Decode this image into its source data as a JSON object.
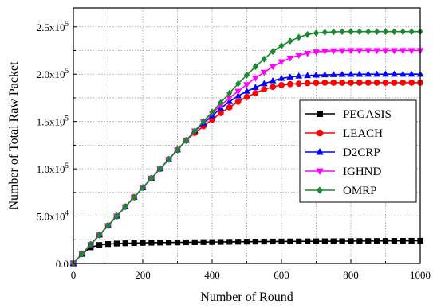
{
  "chart_data": {
    "type": "line",
    "title": "",
    "xlabel": "Number of Round",
    "ylabel": "Number of Total Raw Packet",
    "xlim": [
      0,
      1000
    ],
    "ylim": [
      0,
      270000
    ],
    "xticks": [
      0,
      200,
      400,
      600,
      800,
      1000
    ],
    "xtick_labels": [
      "0",
      "200",
      "400",
      "600",
      "800",
      "1000"
    ],
    "yticks": [
      0,
      50000,
      100000,
      150000,
      200000,
      250000
    ],
    "ytick_labels": [
      {
        "base": "0.0",
        "exp": ""
      },
      {
        "base": "5.0x10",
        "exp": "4"
      },
      {
        "base": "1.0x10",
        "exp": "5"
      },
      {
        "base": "1.5x10",
        "exp": "5"
      },
      {
        "base": "2.0x10",
        "exp": "5"
      },
      {
        "base": "2.5x10",
        "exp": "5"
      }
    ],
    "grid": true,
    "grid_style": "dotted",
    "legend_position": "right-middle",
    "x": [
      0,
      25,
      50,
      75,
      100,
      125,
      150,
      175,
      200,
      225,
      250,
      275,
      300,
      325,
      350,
      375,
      400,
      425,
      450,
      475,
      500,
      525,
      550,
      575,
      600,
      625,
      650,
      675,
      700,
      725,
      750,
      775,
      800,
      825,
      850,
      875,
      900,
      925,
      950,
      975,
      1000
    ],
    "series": [
      {
        "name": "PEGASIS",
        "color": "#000000",
        "marker": "square",
        "values": [
          0,
          10000,
          17000,
          19500,
          20500,
          21000,
          21300,
          21500,
          21700,
          21900,
          22000,
          22100,
          22200,
          22300,
          22400,
          22500,
          22600,
          22700,
          22800,
          22900,
          23000,
          23050,
          23100,
          23150,
          23200,
          23250,
          23300,
          23350,
          23400,
          23450,
          23500,
          23550,
          23600,
          23650,
          23700,
          23750,
          23800,
          23850,
          23900,
          23950,
          24000
        ]
      },
      {
        "name": "LEACH",
        "color": "#ff0000",
        "marker": "circle",
        "values": [
          0,
          10000,
          20000,
          30000,
          40000,
          50000,
          60000,
          70000,
          80000,
          90000,
          100000,
          110000,
          120000,
          130000,
          138000,
          145000,
          152000,
          159000,
          165000,
          171000,
          176000,
          180000,
          184000,
          186500,
          188500,
          189500,
          190000,
          190500,
          190800,
          191000,
          191000,
          191000,
          191000,
          191000,
          191000,
          191000,
          191000,
          191000,
          191000,
          191000,
          191000
        ]
      },
      {
        "name": "D2CRP",
        "color": "#0000ff",
        "marker": "triangle",
        "values": [
          0,
          10000,
          20000,
          30000,
          40000,
          50000,
          60000,
          70000,
          80000,
          90000,
          100000,
          110000,
          120000,
          130000,
          140000,
          148000,
          156000,
          164000,
          171000,
          177000,
          182000,
          186000,
          190000,
          193000,
          195500,
          197000,
          198000,
          198500,
          199000,
          199300,
          199500,
          199700,
          199800,
          199900,
          200000,
          200000,
          200000,
          200000,
          200000,
          200000,
          200000
        ]
      },
      {
        "name": "IGHND",
        "color": "#ff00ff",
        "marker": "triangle-down",
        "values": [
          0,
          10000,
          20000,
          30000,
          40000,
          50000,
          60000,
          70000,
          80000,
          90000,
          100000,
          110000,
          120000,
          130000,
          140000,
          150000,
          159000,
          167000,
          175000,
          182000,
          189000,
          196000,
          202000,
          208000,
          213000,
          217000,
          220000,
          222000,
          223500,
          224300,
          224700,
          224900,
          225000,
          225000,
          225000,
          225000,
          225000,
          225000,
          225000,
          225000,
          225000
        ]
      },
      {
        "name": "OMRP",
        "color": "#1a8a2e",
        "marker": "diamond",
        "values": [
          0,
          10000,
          20000,
          30000,
          40000,
          50000,
          60000,
          70000,
          80000,
          90000,
          100000,
          110000,
          120000,
          130000,
          140000,
          150000,
          160000,
          170000,
          180000,
          190000,
          199000,
          208000,
          216000,
          224000,
          230000,
          235000,
          239000,
          242000,
          243500,
          244300,
          244700,
          245000,
          245000,
          245000,
          245000,
          245000,
          245000,
          245000,
          245000,
          245000,
          245000
        ]
      }
    ]
  }
}
